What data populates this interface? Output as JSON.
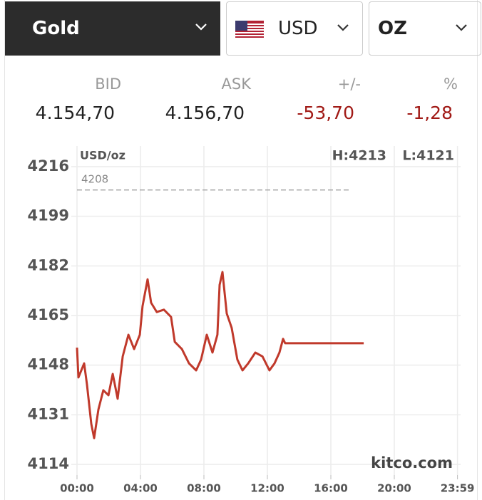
{
  "header": {
    "commodity": "Gold",
    "currency": "USD",
    "unit": "OZ"
  },
  "quote": {
    "labels": [
      "BID",
      "ASK",
      "+/-",
      "%"
    ],
    "values": [
      "4.154,70",
      "4.156,70",
      "-53,70",
      "-1,28"
    ]
  },
  "chart_data": {
    "type": "line",
    "unit_label": "USD/oz",
    "high_label": "H:4213",
    "low_label": "L:4121",
    "reference_line": 4208,
    "watermark": "kitco.com",
    "x": [
      0,
      0.09,
      0.45,
      0.63,
      0.9,
      1.08,
      1.35,
      1.66,
      1.98,
      2.25,
      2.56,
      2.88,
      3.24,
      3.6,
      3.96,
      4.13,
      4.45,
      4.67,
      5.03,
      5.48,
      5.93,
      6.16,
      6.61,
      7.06,
      7.51,
      7.82,
      8.18,
      8.54,
      8.85,
      8.99,
      9.17,
      9.44,
      9.75,
      10.11,
      10.43,
      10.79,
      11.24,
      11.69,
      12.13,
      12.45,
      12.76,
      12.99,
      13.12,
      18.07
    ],
    "series": [
      {
        "color": "#c0392b",
        "values": [
          4154,
          4143.8,
          4148.6,
          4141.3,
          4127.9,
          4123,
          4132.8,
          4139.4,
          4137.7,
          4145,
          4136.5,
          4151,
          4158.4,
          4153.5,
          4158.4,
          4168.2,
          4177.4,
          4169.4,
          4166.2,
          4167,
          4164.5,
          4156,
          4153.5,
          4148.6,
          4146.2,
          4149.9,
          4158.4,
          4152.3,
          4158.4,
          4175.5,
          4179.9,
          4165.7,
          4160.8,
          4149.9,
          4146.2,
          4148.6,
          4152.3,
          4151,
          4146.2,
          4148.6,
          4152.3,
          4157,
          4155.5,
          4155.5
        ]
      }
    ],
    "xlim": [
      0,
      24
    ],
    "ylim": [
      4114,
      4216
    ],
    "yticks": [
      4114,
      4131,
      4148,
      4165,
      4182,
      4199,
      4216
    ],
    "xticks": [
      {
        "value": 0,
        "label": "00:00"
      },
      {
        "value": 4,
        "label": "04:00"
      },
      {
        "value": 8,
        "label": "08:00"
      },
      {
        "value": 12,
        "label": "12:00"
      },
      {
        "value": 16,
        "label": "16:00"
      },
      {
        "value": 20,
        "label": "20:00"
      },
      {
        "value": 23.983,
        "label": "23:59"
      }
    ],
    "grid": true
  }
}
